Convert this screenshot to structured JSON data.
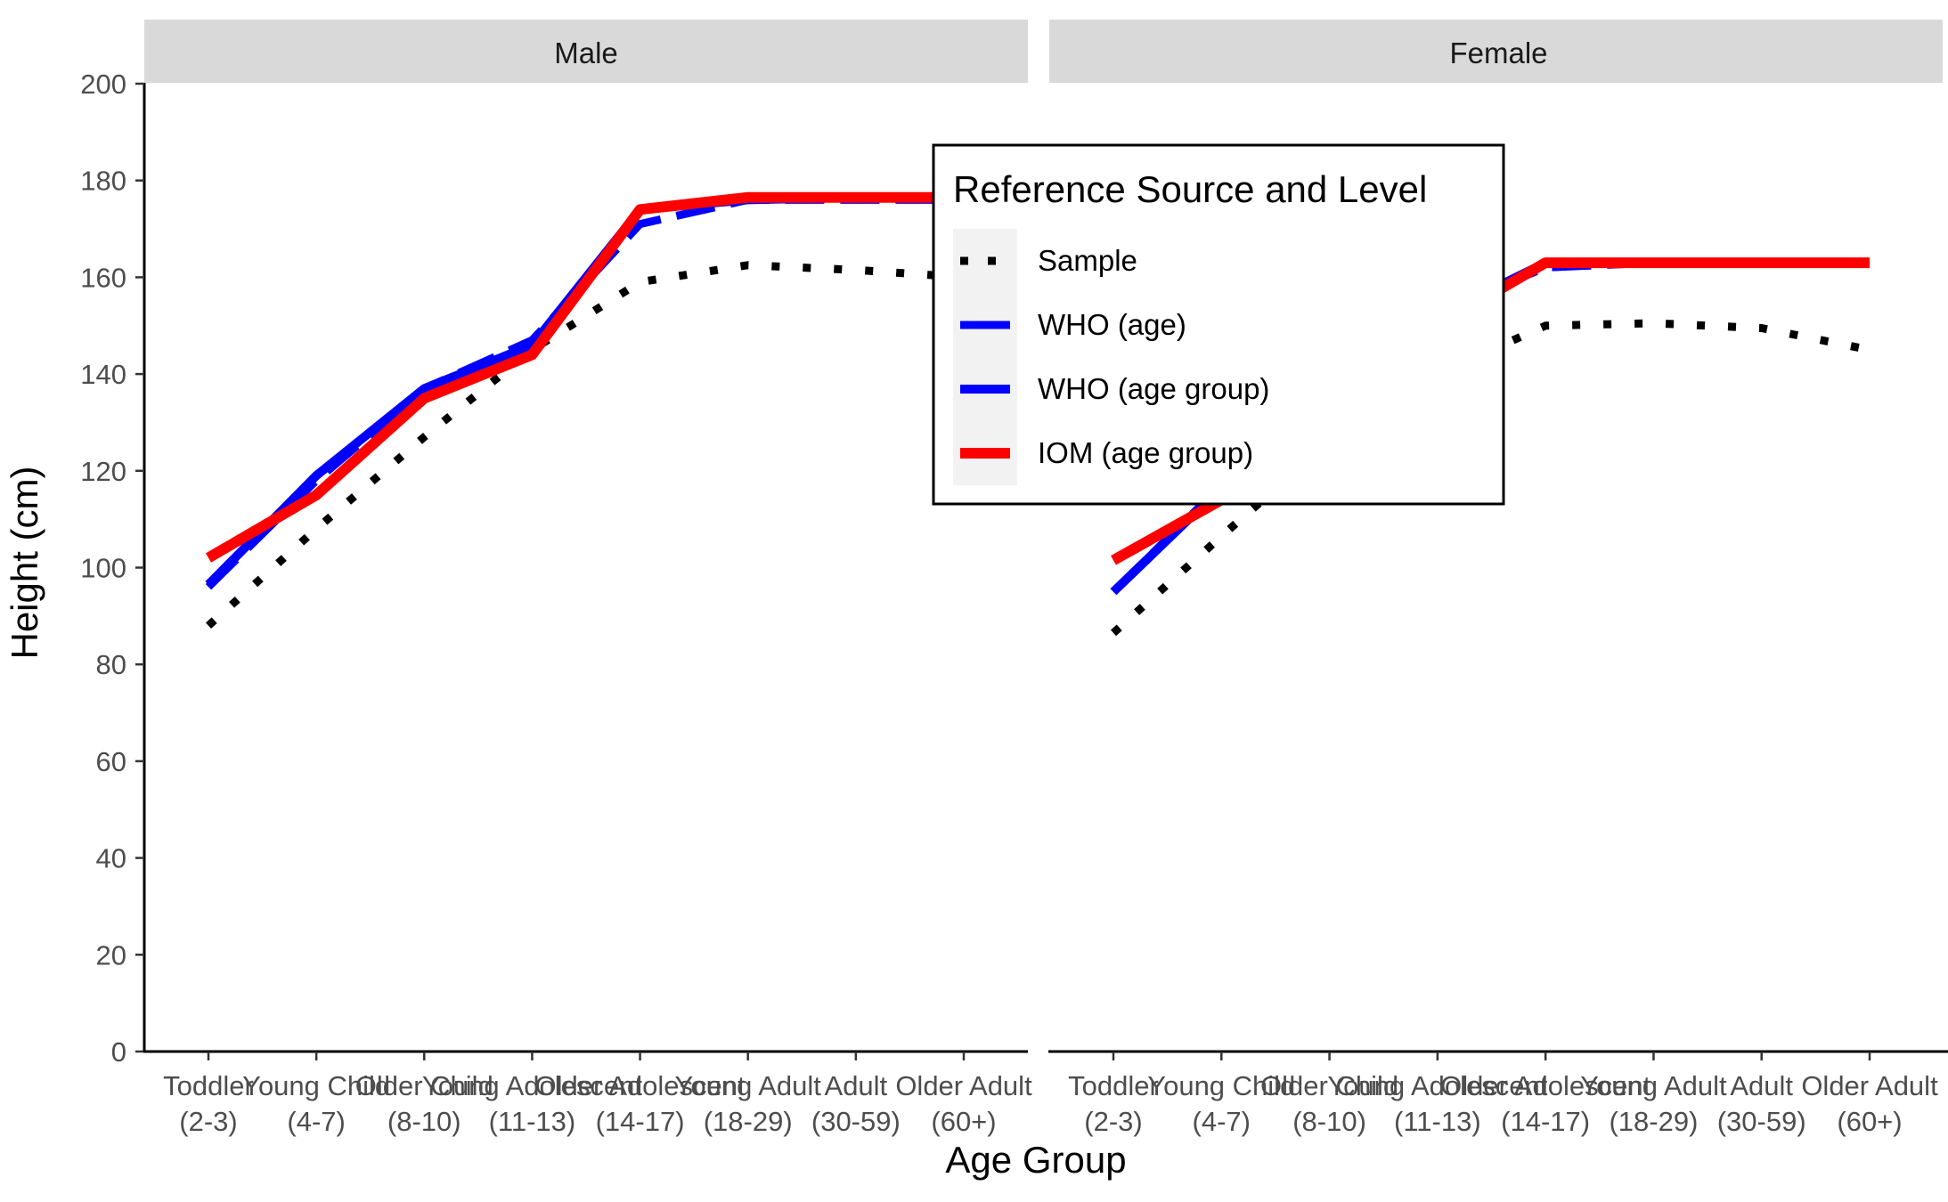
{
  "chart_data": {
    "type": "line",
    "xlabel": "Age Group",
    "ylabel": "Height (cm)",
    "ylim": [
      0,
      200
    ],
    "yticks": [
      0,
      20,
      40,
      60,
      80,
      100,
      120,
      140,
      160,
      180,
      200
    ],
    "categories": [
      {
        "line1": "Toddler",
        "line2": "(2-3)"
      },
      {
        "line1": "Young Child",
        "line2": "(4-7)"
      },
      {
        "line1": "Older Child",
        "line2": "(8-10)"
      },
      {
        "line1": "Young Adolescent",
        "line2": "(11-13)"
      },
      {
        "line1": "Older Adolescent",
        "line2": "(14-17)"
      },
      {
        "line1": "Young Adult",
        "line2": "(18-29)"
      },
      {
        "line1": "Adult",
        "line2": "(30-59)"
      },
      {
        "line1": "Older Adult",
        "line2": "(60+)"
      }
    ],
    "grid": false,
    "legend": {
      "title": "Reference Source and Level",
      "placement": "top-center",
      "entries": [
        {
          "label": "Sample",
          "color": "#000000",
          "style": "dotted"
        },
        {
          "label": "WHO (age)",
          "color": "#0000ff",
          "style": "dashed"
        },
        {
          "label": "WHO (age group)",
          "color": "#0000ff",
          "style": "solid"
        },
        {
          "label": "IOM (age group)",
          "color": "#ff0000",
          "style": "solid"
        }
      ]
    },
    "panels": [
      {
        "label": "Male",
        "series": [
          {
            "name": "Sample",
            "values": [
              88,
              108,
              127,
              145,
              159,
              162.5,
              161.5,
              160
            ]
          },
          {
            "name": "WHO (age)",
            "values": [
              96,
              118,
              137,
              147,
              171,
              176,
              176,
              176
            ]
          },
          {
            "name": "WHO (age group)",
            "values": [
              96.5,
              119,
              137,
              146,
              174,
              176,
              176.5,
              176.5
            ]
          },
          {
            "name": "IOM (age group)",
            "values": [
              102,
              115,
              135,
              144,
              174,
              176.5,
              176.5,
              176.5
            ]
          }
        ]
      },
      {
        "label": "Female",
        "series": [
          {
            "name": "Sample",
            "values": [
              86.5,
              106.5,
              126,
              140,
              150,
              150.5,
              149.5,
              145
            ]
          },
          {
            "name": "WHO (age)",
            "values": [
              95,
              117,
              135.5,
              153,
              162,
              163,
              163,
              163
            ]
          },
          {
            "name": "WHO (age group)",
            "values": [
              95,
              116.5,
              136,
              152,
              163,
              163,
              163,
              163
            ]
          },
          {
            "name": "IOM (age group)",
            "values": [
              101.5,
              114,
              133,
              150,
              163,
              163,
              163,
              163
            ]
          }
        ]
      }
    ]
  }
}
